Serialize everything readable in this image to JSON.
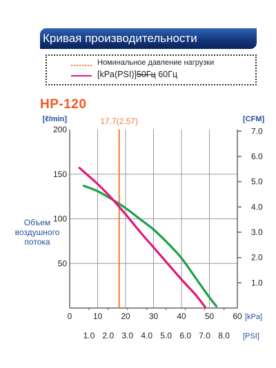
{
  "header": {
    "title": "Кривая производительности"
  },
  "legend": {
    "rated_label": "Номинальное давление нагрузки",
    "curve_label_prefix": "[kPa(PSI)]",
    "curve_label_struck": "50Гц",
    "curve_label_suffix": " 60Гц"
  },
  "model": "HP-120",
  "colors": {
    "header_bg": "#1a3f8a",
    "axis_text_blue": "#1f4e9b",
    "model_orange": "#f15a22",
    "rated_line": "#f07a32",
    "series_50hz": "#1f9e4b",
    "series_60hz": "#e0197c"
  },
  "chart_data": {
    "type": "line",
    "xlabel": "[kPa]",
    "xlabel_secondary": "[PSI]",
    "ylabel": [
      "Объем",
      "воздушного",
      "потока"
    ],
    "ylabel_left_unit": "[ℓ/min]",
    "ylabel_right_unit": "[CFM]",
    "xlim": [
      0,
      60
    ],
    "ylim": [
      0,
      200
    ],
    "x_ticks": [
      0,
      10,
      20,
      30,
      40,
      50,
      60
    ],
    "x_tick_labels": [
      "0",
      "10",
      "20",
      "30",
      "40",
      "50",
      "60"
    ],
    "psi_ticks": [
      {
        "label": "1.0",
        "kpa": 6.9
      },
      {
        "label": "2.0",
        "kpa": 13.8
      },
      {
        "label": "3.0",
        "kpa": 20.7
      },
      {
        "label": "4.0",
        "kpa": 27.6
      },
      {
        "label": "5.0",
        "kpa": 34.5
      },
      {
        "label": "6.0",
        "kpa": 41.4
      },
      {
        "label": "7.0",
        "kpa": 48.3
      },
      {
        "label": "8.0",
        "kpa": 55.2
      }
    ],
    "y_ticks": [
      50,
      100,
      150,
      200
    ],
    "y_tick_labels": [
      "50",
      "100",
      "150",
      "200"
    ],
    "cfm_ticks": [
      {
        "label": "1.0",
        "lpm": 28.3
      },
      {
        "label": "2.0",
        "lpm": 56.6
      },
      {
        "label": "3.0",
        "lpm": 85.0
      },
      {
        "label": "4.0",
        "lpm": 113.3
      },
      {
        "label": "5.0",
        "lpm": 141.6
      },
      {
        "label": "6.0",
        "lpm": 169.9
      },
      {
        "label": "7.0",
        "lpm": 198.2
      }
    ],
    "grid": true,
    "rated_pressure": {
      "x": 17.7,
      "label": "17.7(2.57)"
    },
    "series": [
      {
        "name": "50Гц",
        "color": "#1f9e4b",
        "x": [
          5,
          10,
          15,
          20,
          25,
          30,
          35,
          40,
          45,
          50,
          52.5
        ],
        "y": [
          137,
          131,
          122,
          112,
          100,
          88,
          73,
          56,
          34,
          12,
          2
        ]
      },
      {
        "name": "60Гц",
        "color": "#e0197c",
        "x": [
          3.5,
          10,
          15,
          20,
          25,
          30,
          35,
          40,
          45,
          48.5
        ],
        "y": [
          157,
          139,
          123,
          105,
          86,
          68,
          50,
          32,
          15,
          1
        ]
      }
    ]
  }
}
